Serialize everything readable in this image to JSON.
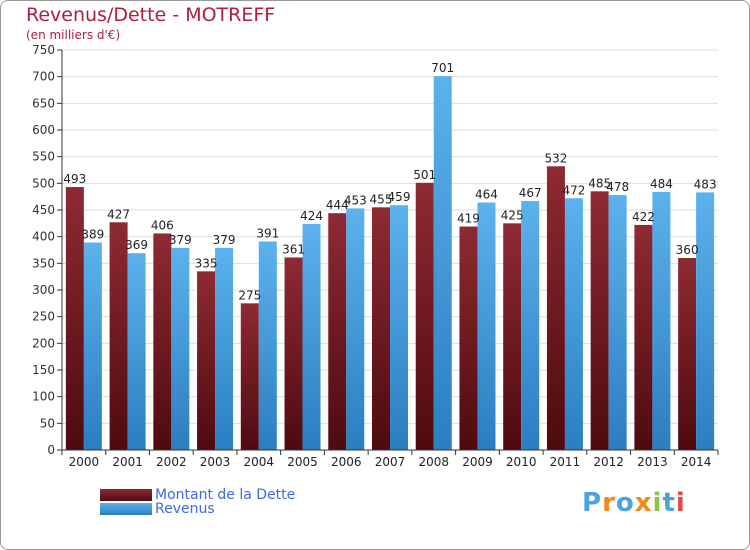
{
  "title": "Revenus/Dette - MOTREFF",
  "subtitle": "(en milliers d'€)",
  "logo_text": "Proxiti",
  "colors": {
    "title": "#b01e3e",
    "dette": "#7a1f28",
    "revenus": "#4aa3df",
    "legend_text": "#4169e1",
    "grid": "#dddddd",
    "axis": "#333333"
  },
  "legend": [
    {
      "label": "Montant de la Dette",
      "color": "#7a1f28"
    },
    {
      "label": "Revenus",
      "color": "#4aa3df"
    }
  ],
  "chart_data": {
    "type": "bar",
    "title": "Revenus/Dette - MOTREFF",
    "subtitle": "(en milliers d'€)",
    "categories": [
      "2000",
      "2001",
      "2002",
      "2003",
      "2004",
      "2005",
      "2006",
      "2007",
      "2008",
      "2009",
      "2010",
      "2011",
      "2012",
      "2013",
      "2014"
    ],
    "series": [
      {
        "name": "Montant de la Dette",
        "values": [
          493,
          427,
          406,
          335,
          275,
          361,
          444,
          455,
          501,
          419,
          425,
          532,
          485,
          422,
          360
        ]
      },
      {
        "name": "Revenus",
        "values": [
          389,
          369,
          379,
          379,
          391,
          424,
          453,
          459,
          701,
          464,
          467,
          472,
          478,
          484,
          483
        ]
      }
    ],
    "ylim": [
      0,
      750
    ],
    "yticks": [
      0,
      50,
      100,
      150,
      200,
      250,
      300,
      350,
      400,
      450,
      500,
      550,
      600,
      650,
      700,
      750
    ],
    "grid": true,
    "legend_position": "bottom-left"
  }
}
